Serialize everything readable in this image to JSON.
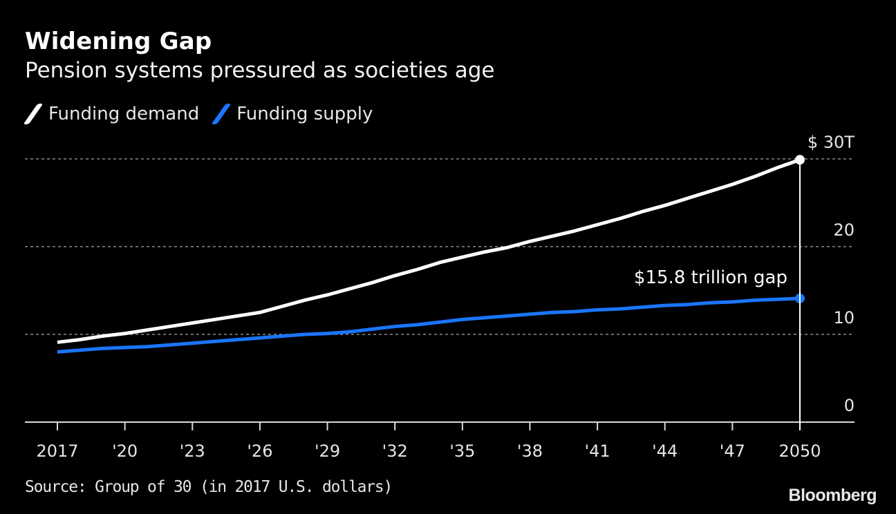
{
  "chart_data": {
    "type": "line",
    "title": "Widening Gap",
    "subtitle": "Pension systems pressured as societies age",
    "xlabel": "",
    "ylabel": "",
    "x": [
      2017,
      2018,
      2019,
      2020,
      2021,
      2022,
      2023,
      2024,
      2025,
      2026,
      2027,
      2028,
      2029,
      2030,
      2031,
      2032,
      2033,
      2034,
      2035,
      2036,
      2037,
      2038,
      2039,
      2040,
      2041,
      2042,
      2043,
      2044,
      2045,
      2046,
      2047,
      2048,
      2049,
      2050
    ],
    "series": [
      {
        "name": "Funding demand",
        "color": "#ffffff",
        "values": [
          9.1,
          9.4,
          9.8,
          10.1,
          10.5,
          10.9,
          11.3,
          11.7,
          12.1,
          12.5,
          13.2,
          13.9,
          14.5,
          15.2,
          15.9,
          16.7,
          17.4,
          18.2,
          18.8,
          19.4,
          19.9,
          20.6,
          21.2,
          21.8,
          22.5,
          23.2,
          24.0,
          24.7,
          25.5,
          26.3,
          27.1,
          28.0,
          29.0,
          29.9
        ]
      },
      {
        "name": "Funding supply",
        "color": "#1a75ff",
        "values": [
          8.0,
          8.2,
          8.4,
          8.5,
          8.6,
          8.8,
          9.0,
          9.2,
          9.4,
          9.6,
          9.8,
          10.0,
          10.1,
          10.3,
          10.6,
          10.9,
          11.1,
          11.4,
          11.7,
          11.9,
          12.1,
          12.3,
          12.5,
          12.6,
          12.8,
          12.9,
          13.1,
          13.3,
          13.4,
          13.6,
          13.7,
          13.9,
          14.0,
          14.1
        ]
      }
    ],
    "xlim": [
      2016.5,
      2052.5
    ],
    "ylim": [
      0,
      30
    ],
    "x_ticks": [
      2017,
      2020,
      2023,
      2026,
      2029,
      2032,
      2035,
      2038,
      2041,
      2044,
      2047,
      2050
    ],
    "x_tick_labels": [
      "2017",
      "'20",
      "'23",
      "'26",
      "'29",
      "'32",
      "'35",
      "'38",
      "'41",
      "'44",
      "'47",
      "2050"
    ],
    "y_ticks": [
      0,
      10,
      20,
      30
    ],
    "y_tick_labels": [
      "0",
      "10",
      "20",
      "$ 30T"
    ],
    "grid": true,
    "legend": "top-left",
    "annotations": [
      {
        "text": "$15.8 trillion gap",
        "x": 2050,
        "from": 14.1,
        "to": 29.9
      }
    ],
    "source": "Source: Group of 30 (in 2017 U.S. dollars)"
  },
  "header": {
    "title": "Widening Gap",
    "subtitle": "Pension systems pressured as societies age"
  },
  "legend": {
    "items": [
      {
        "label": "Funding demand",
        "color": "#ffffff"
      },
      {
        "label": "Funding supply",
        "color": "#1a75ff"
      }
    ]
  },
  "footer": {
    "source": "Source: Group of 30 (in 2017 U.S. dollars)",
    "brand": "Bloomberg"
  }
}
